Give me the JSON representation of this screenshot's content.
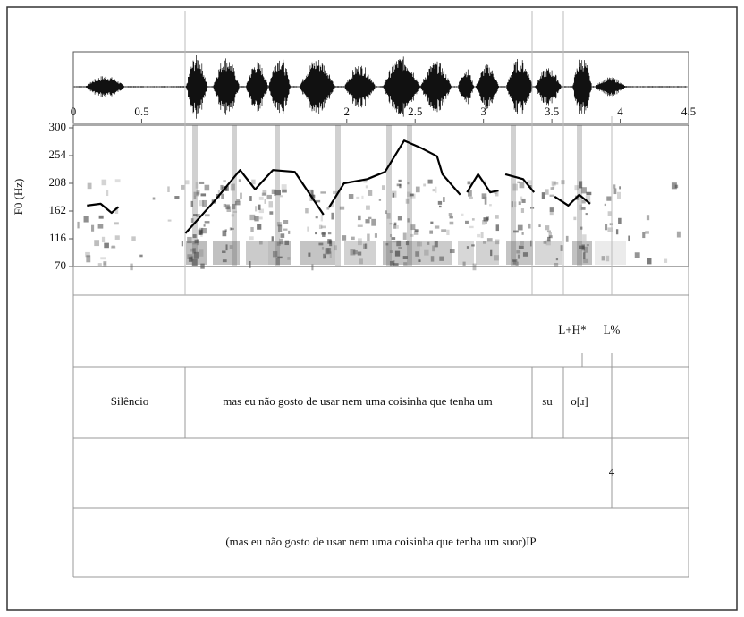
{
  "chart_data": {
    "type": "line",
    "y_label": "F0 (Hz)",
    "xlim": [
      0,
      4.5
    ],
    "xticks": [
      0,
      0.5,
      2,
      2.5,
      3,
      3.5,
      4,
      4.5
    ],
    "ylim": [
      70,
      300
    ],
    "yticks": [
      70,
      116,
      162,
      208,
      254,
      300
    ],
    "color": "#000000",
    "x": [
      0.1,
      0.2,
      0.28,
      0.33,
      null,
      0.82,
      1.03,
      1.22,
      1.33,
      1.46,
      1.62,
      1.83,
      null,
      1.87,
      1.98,
      2.15,
      2.28,
      2.42,
      2.54,
      2.66,
      2.7,
      2.83,
      null,
      2.88,
      2.96,
      3.05,
      3.11,
      null,
      3.16,
      3.29,
      3.37,
      null,
      3.52,
      3.62,
      3.7,
      3.78
    ],
    "values": [
      171,
      174,
      159,
      169,
      null,
      125,
      178,
      230,
      198,
      230,
      227,
      156,
      null,
      168,
      208,
      215,
      227,
      279,
      267,
      253,
      223,
      189,
      null,
      193,
      223,
      193,
      196,
      null,
      223,
      215,
      193,
      null,
      186,
      171,
      189,
      174
    ]
  },
  "tiers": [
    {
      "labels": [
        "L+H*",
        "L%"
      ]
    },
    {
      "labels": [
        "Silêncio",
        "mas eu não gosto de usar nem uma coisinha que tenha um",
        "su",
        "o[ɹ]"
      ]
    },
    {
      "labels": [
        "4"
      ]
    },
    {
      "labels": [
        "(mas eu não gosto de usar nem uma coisinha que tenha um suor)IP"
      ]
    }
  ]
}
